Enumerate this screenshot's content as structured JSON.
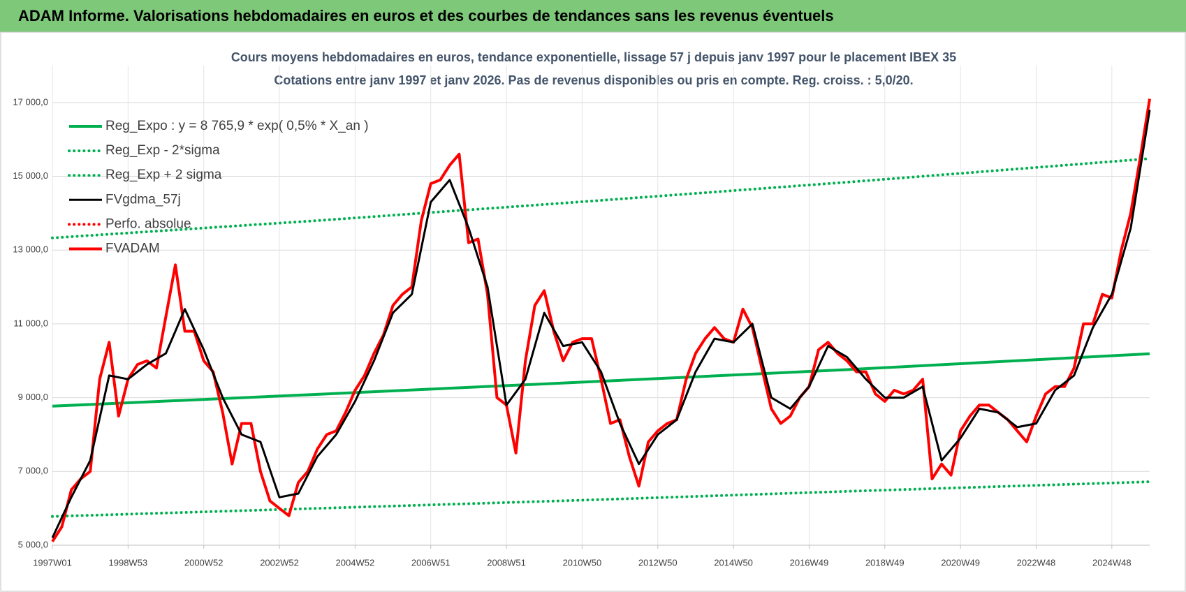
{
  "header": {
    "title": "ADAM Informe. Valorisations hebdomadaires en euros et des courbes de tendances sans les revenus éventuels"
  },
  "chart_data": {
    "type": "line",
    "title": "Cours moyens hebdomadaires en euros, tendance exponentielle, lissage 57 j depuis janv 1997  pour le placement IBEX 35",
    "subtitle": "Cotations entre janv 1997 et janv 2026. Pas de revenus disponibles ou pris  en compte. Reg. croiss. : 5,0/20.",
    "xlim": [
      1997,
      2026
    ],
    "xticks": [
      {
        "value": 1997,
        "label": "1997W01"
      },
      {
        "value": 1999,
        "label": "1998W53"
      },
      {
        "value": 2001,
        "label": "2000W52"
      },
      {
        "value": 2003,
        "label": "2002W52"
      },
      {
        "value": 2005,
        "label": "2004W52"
      },
      {
        "value": 2007,
        "label": "2006W51"
      },
      {
        "value": 2009,
        "label": "2008W51"
      },
      {
        "value": 2011,
        "label": "2010W50"
      },
      {
        "value": 2013,
        "label": "2012W50"
      },
      {
        "value": 2015,
        "label": "2014W50"
      },
      {
        "value": 2017,
        "label": "2016W49"
      },
      {
        "value": 2019,
        "label": "2018W49"
      },
      {
        "value": 2021,
        "label": "2020W49"
      },
      {
        "value": 2023,
        "label": "2022W48"
      },
      {
        "value": 2025,
        "label": "2024W48"
      }
    ],
    "ylim": [
      5000,
      18000
    ],
    "yticks": [
      {
        "value": 5000,
        "label": "5 000,0"
      },
      {
        "value": 7000,
        "label": "7 000,0"
      },
      {
        "value": 9000,
        "label": "9 000,0"
      },
      {
        "value": 11000,
        "label": "11 000,0"
      },
      {
        "value": 13000,
        "label": "13 000,0"
      },
      {
        "value": 15000,
        "label": "15 000,0"
      },
      {
        "value": 17000,
        "label": "17 000,0"
      }
    ],
    "grid": true,
    "legend": "upper left",
    "series": [
      {
        "name": "Reg_Expo : y = 8 765,9 * exp( 0,5% *  X_an )",
        "color": "#00b050",
        "style": "solid",
        "x": [
          1997,
          2004,
          2011,
          2018,
          2026
        ],
        "values": [
          8770,
          9090,
          9420,
          9760,
          10190
        ]
      },
      {
        "name": "Reg_Exp - 2*sigma",
        "color": "#00b050",
        "style": "dotted",
        "x": [
          1997,
          2004,
          2011,
          2018,
          2026
        ],
        "values": [
          5780,
          6000,
          6220,
          6460,
          6720
        ]
      },
      {
        "name": "Reg_Exp + 2 sigma",
        "color": "#00b050",
        "style": "dotted",
        "x": [
          1997,
          2004,
          2011,
          2018,
          2026
        ],
        "values": [
          13330,
          13800,
          14310,
          14840,
          15480
        ]
      },
      {
        "name": "FVgdma_57j",
        "color": "#000000",
        "style": "solid",
        "x": [
          1997,
          1997.5,
          1998,
          1998.5,
          1999,
          1999.5,
          2000,
          2000.5,
          2001,
          2001.5,
          2002,
          2002.5,
          2003,
          2003.5,
          2004,
          2004.5,
          2005,
          2005.5,
          2006,
          2006.5,
          2007,
          2007.5,
          2008,
          2008.5,
          2009,
          2009.5,
          2010,
          2010.5,
          2011,
          2011.5,
          2012,
          2012.5,
          2013,
          2013.5,
          2014,
          2014.5,
          2015,
          2015.5,
          2016,
          2016.5,
          2017,
          2017.5,
          2018,
          2018.5,
          2019,
          2019.5,
          2020,
          2020.5,
          2021,
          2021.5,
          2022,
          2022.5,
          2023,
          2023.5,
          2024,
          2024.5,
          2025,
          2025.5,
          2026
        ],
        "values": [
          5200,
          6300,
          7300,
          9600,
          9500,
          9900,
          10200,
          11400,
          10300,
          9000,
          8000,
          7800,
          6300,
          6400,
          7400,
          8000,
          8900,
          10000,
          11300,
          11800,
          14300,
          14900,
          13600,
          12000,
          8800,
          9500,
          11300,
          10400,
          10500,
          9700,
          8300,
          7200,
          8000,
          8400,
          9700,
          10600,
          10500,
          11000,
          9000,
          8700,
          9300,
          10400,
          10100,
          9500,
          9000,
          9000,
          9300,
          7300,
          7900,
          8700,
          8600,
          8200,
          8300,
          9200,
          9600,
          10900,
          11800,
          13600,
          16800
        ]
      },
      {
        "name": "Perfo. absolue",
        "color": "#ff0000",
        "style": "dotted",
        "x": [],
        "values": []
      },
      {
        "name": "FVADAM",
        "color": "#ff0000",
        "style": "solid",
        "x": [
          1997,
          1997.25,
          1997.5,
          1997.75,
          1998,
          1998.25,
          1998.5,
          1998.75,
          1999,
          1999.25,
          1999.5,
          1999.75,
          2000,
          2000.25,
          2000.5,
          2000.75,
          2001,
          2001.25,
          2001.5,
          2001.75,
          2002,
          2002.25,
          2002.5,
          2002.75,
          2003,
          2003.25,
          2003.5,
          2003.75,
          2004,
          2004.25,
          2004.5,
          2004.75,
          2005,
          2005.25,
          2005.5,
          2005.75,
          2006,
          2006.25,
          2006.5,
          2006.75,
          2007,
          2007.25,
          2007.5,
          2007.75,
          2008,
          2008.25,
          2008.5,
          2008.75,
          2009,
          2009.25,
          2009.5,
          2009.75,
          2010,
          2010.25,
          2010.5,
          2010.75,
          2011,
          2011.25,
          2011.5,
          2011.75,
          2012,
          2012.25,
          2012.5,
          2012.75,
          2013,
          2013.25,
          2013.5,
          2013.75,
          2014,
          2014.25,
          2014.5,
          2014.75,
          2015,
          2015.25,
          2015.5,
          2015.75,
          2016,
          2016.25,
          2016.5,
          2016.75,
          2017,
          2017.25,
          2017.5,
          2017.75,
          2018,
          2018.25,
          2018.5,
          2018.75,
          2019,
          2019.25,
          2019.5,
          2019.75,
          2020,
          2020.25,
          2020.5,
          2020.75,
          2021,
          2021.25,
          2021.5,
          2021.75,
          2022,
          2022.25,
          2022.5,
          2022.75,
          2023,
          2023.25,
          2023.5,
          2023.75,
          2024,
          2024.25,
          2024.5,
          2024.75,
          2025,
          2025.25,
          2025.5,
          2025.75,
          2026
        ],
        "values": [
          5100,
          5500,
          6500,
          6800,
          7000,
          9500,
          10500,
          8500,
          9500,
          9900,
          10000,
          9800,
          11200,
          12600,
          10800,
          10800,
          10000,
          9700,
          8600,
          7200,
          8300,
          8300,
          7000,
          6200,
          6000,
          5800,
          6700,
          7000,
          7600,
          8000,
          8100,
          8600,
          9200,
          9600,
          10200,
          10700,
          11500,
          11800,
          12000,
          13800,
          14800,
          14900,
          15300,
          15600,
          13200,
          13300,
          11800,
          9000,
          8800,
          7500,
          10000,
          11500,
          11900,
          10800,
          10000,
          10500,
          10600,
          10600,
          9500,
          8300,
          8400,
          7400,
          6600,
          7800,
          8100,
          8300,
          8400,
          9500,
          10200,
          10600,
          10900,
          10600,
          10500,
          11400,
          10900,
          9800,
          8700,
          8300,
          8500,
          9000,
          9300,
          10300,
          10500,
          10200,
          10000,
          9700,
          9700,
          9100,
          8900,
          9200,
          9100,
          9200,
          9500,
          6800,
          7200,
          6900,
          8100,
          8500,
          8800,
          8800,
          8600,
          8400,
          8100,
          7800,
          8500,
          9100,
          9300,
          9300,
          9800,
          11000,
          11000,
          11800,
          11700,
          13000,
          14000,
          15500,
          17100
        ]
      }
    ]
  }
}
